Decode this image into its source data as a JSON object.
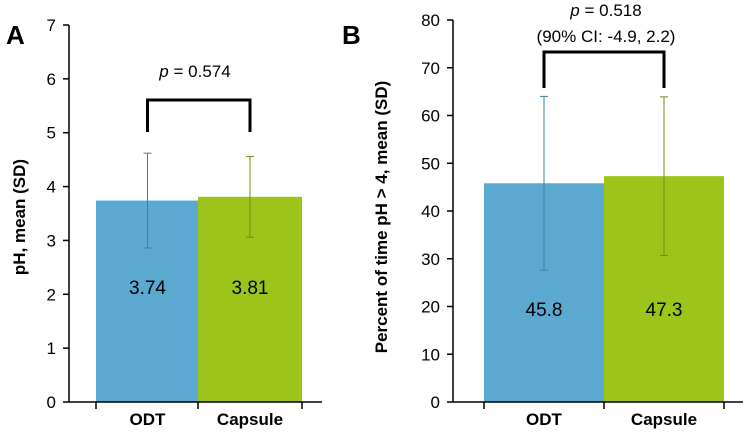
{
  "chart_data": [
    {
      "type": "bar",
      "panel_label": "A",
      "categories": [
        "ODT",
        "Capsule"
      ],
      "values": [
        3.74,
        3.81
      ],
      "value_labels": [
        "3.74",
        "3.81"
      ],
      "sd": [
        0.88,
        0.75
      ],
      "colors": [
        "#5ba8d0",
        "#9dc41a"
      ],
      "ylabel": "pH, mean (SD)",
      "ylim": [
        0,
        7
      ],
      "yticks": [
        0,
        1,
        2,
        3,
        4,
        5,
        6,
        7
      ],
      "annotation": {
        "p_symbol": "p",
        "p_text": " = 0.574"
      }
    },
    {
      "type": "bar",
      "panel_label": "B",
      "categories": [
        "ODT",
        "Capsule"
      ],
      "values": [
        45.8,
        47.3
      ],
      "value_labels": [
        "45.8",
        "47.3"
      ],
      "sd": [
        18.2,
        16.6
      ],
      "colors": [
        "#5ba8d0",
        "#9dc41a"
      ],
      "ylabel": "Percent of time pH > 4, mean (SD)",
      "ylim": [
        0,
        80
      ],
      "yticks": [
        0,
        10,
        20,
        30,
        40,
        50,
        60,
        70,
        80
      ],
      "annotation": {
        "p_symbol": "p",
        "p_text": " = 0.518",
        "ci_text": "(90% CI: -4.9, 2.2)"
      }
    }
  ]
}
